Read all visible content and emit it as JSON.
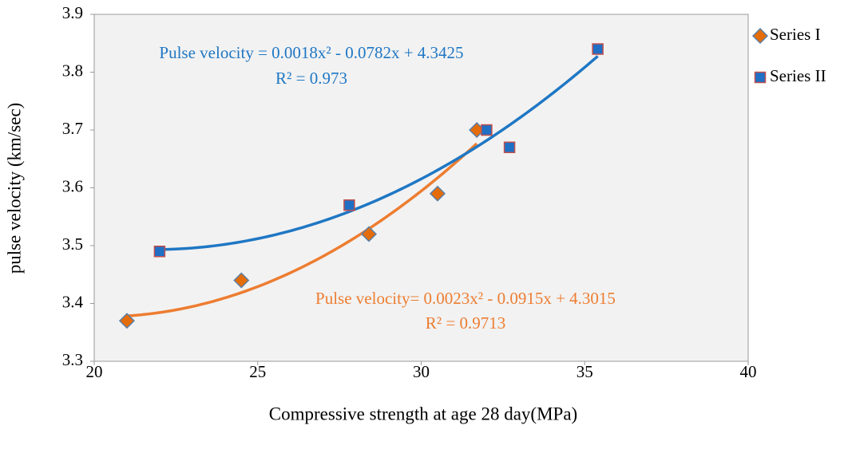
{
  "chart_data": {
    "type": "scatter",
    "xlabel": "Compressive strength at age 28 day(MPa)",
    "ylabel": "pulse velocity (km/sec)",
    "xlim": [
      20,
      40
    ],
    "xticks": [
      20,
      25,
      30,
      35,
      40
    ],
    "ylim": [
      3.3,
      3.9
    ],
    "yticks": [
      3.3,
      3.4,
      3.5,
      3.6,
      3.7,
      3.8,
      3.9
    ],
    "grid": false,
    "legend": "right",
    "series": [
      {
        "name": "Series I",
        "marker": "diamond",
        "color": "#e46c0a",
        "edgecolor": "#5a7fa8",
        "trendline": "polynomial",
        "trendline_color": "#ed7d31",
        "x": [
          21,
          24.5,
          28.4,
          30.5,
          31.7
        ],
        "values": [
          3.37,
          3.44,
          3.52,
          3.59,
          3.7
        ]
      },
      {
        "name": "Series II",
        "marker": "square",
        "color": "#1f6fc5",
        "edgecolor": "#c0504d",
        "trendline": "polynomial",
        "trendline_color": "#1f77c4",
        "x": [
          22,
          27.8,
          32,
          32.7,
          35.4
        ],
        "values": [
          3.49,
          3.57,
          3.7,
          3.67,
          3.84
        ]
      }
    ],
    "annotations": [
      {
        "text": "Pulse velocity = 0.0018x² - 0.0782x + 4.3425",
        "color": "#1f77c4"
      },
      {
        "text": "R² = 0.973",
        "color": "#1f77c4"
      },
      {
        "text": "Pulse velocity= 0.0023x² - 0.0915x + 4.3015",
        "color": "#ed7d31"
      },
      {
        "text": "R² = 0.9713",
        "color": "#ed7d31"
      }
    ]
  }
}
